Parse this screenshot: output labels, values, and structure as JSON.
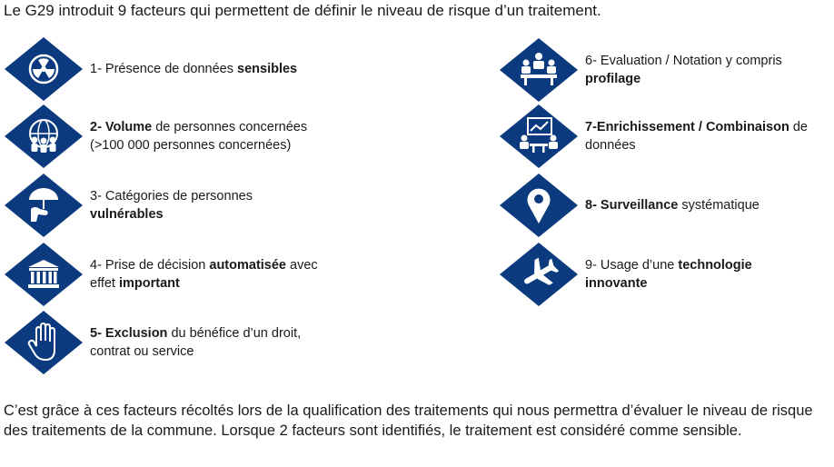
{
  "intro": "Le G29 introduit 9 facteurs qui permettent de définir le niveau de risque d’un traitement.",
  "accent_color": "#0b3a7e",
  "factors": [
    {
      "icon": "radiation-icon",
      "pre": "1- Présence de données ",
      "bold": "sensibles",
      "post": "",
      "bold2": "",
      "post2": ""
    },
    {
      "icon": "crowd-globe-icon",
      "pre": "",
      "bold": "2- Volume",
      "post": " de personnes concernées (>100 000 personnes concernées)",
      "bold2": "",
      "post2": ""
    },
    {
      "icon": "umbrella-hand-icon",
      "pre": "3- Catégories de personnes ",
      "bold": "vulnérables",
      "post": "",
      "bold2": "",
      "post2": ""
    },
    {
      "icon": "institution-icon",
      "pre": "4- Prise de décision ",
      "bold": "automatisée",
      "post": " avec effet ",
      "bold2": "important",
      "post2": ""
    },
    {
      "icon": "stop-hand-icon",
      "pre": "",
      "bold": "5- Exclusion",
      "post": " du bénéfice d’un droit, contrat ou service",
      "bold2": "",
      "post2": ""
    },
    {
      "icon": "meeting-icon",
      "pre": "6- Evaluation / Notation y compris ",
      "bold": "profilage",
      "post": "",
      "bold2": "",
      "post2": ""
    },
    {
      "icon": "presentation-icon",
      "pre": "",
      "bold": "7-Enrichissement / Combinaison",
      "post": " de données",
      "bold2": "",
      "post2": ""
    },
    {
      "icon": "location-pin-icon",
      "pre": "",
      "bold": "8- Surveillance",
      "post": " systématique",
      "bold2": "",
      "post2": ""
    },
    {
      "icon": "airplane-icon",
      "pre": "9- Usage d’une ",
      "bold": "technologie innovante",
      "post": "",
      "bold2": "",
      "post2": ""
    }
  ],
  "outro": "C’est grâce à ces facteurs récoltés lors de la qualification des traitements qui nous permettra d’évaluer le niveau de risque des traitements de la commune. Lorsque 2 facteurs sont identifiés, le traitement est considéré comme sensible."
}
